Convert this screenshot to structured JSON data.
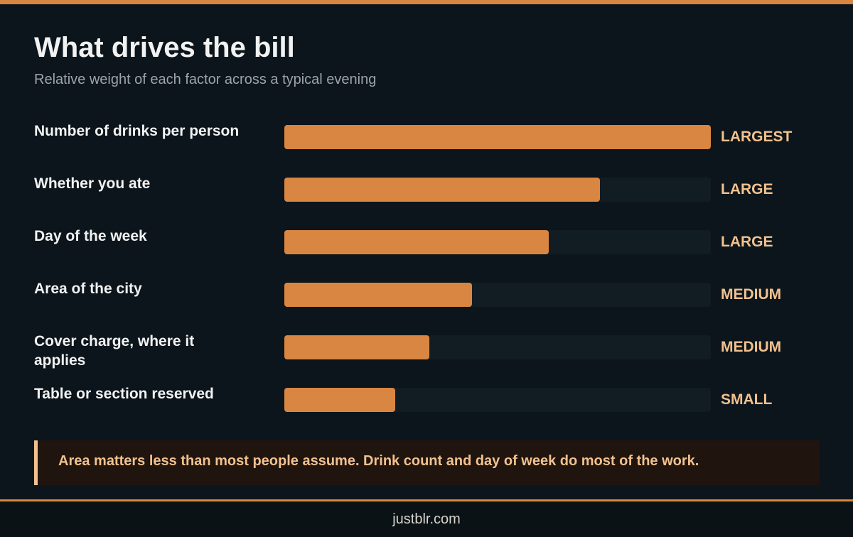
{
  "title": "What drives the bill",
  "subtitle": "Relative weight of each factor across a typical evening",
  "chart_data": {
    "type": "bar",
    "orientation": "horizontal",
    "categories": [
      "Number of drinks per person",
      "Whether you ate",
      "Day of the week",
      "Area of the city",
      "Cover charge, where it applies",
      "Table or section reserved"
    ],
    "values": [
      100,
      74,
      62,
      44,
      34,
      26
    ],
    "value_labels": [
      "LARGEST",
      "LARGE",
      "LARGE",
      "MEDIUM",
      "MEDIUM",
      "SMALL"
    ],
    "xlim": [
      0,
      100
    ],
    "grid": false
  },
  "note": "Area matters less than most people assume. Drink count and day of week do most of the work.",
  "footer": "justblr.com",
  "colors": {
    "background": "#0b151b",
    "accent": "#d98642",
    "track": "#121d23",
    "label_highlight": "#f2c18e",
    "note_background": "#1f140e"
  }
}
